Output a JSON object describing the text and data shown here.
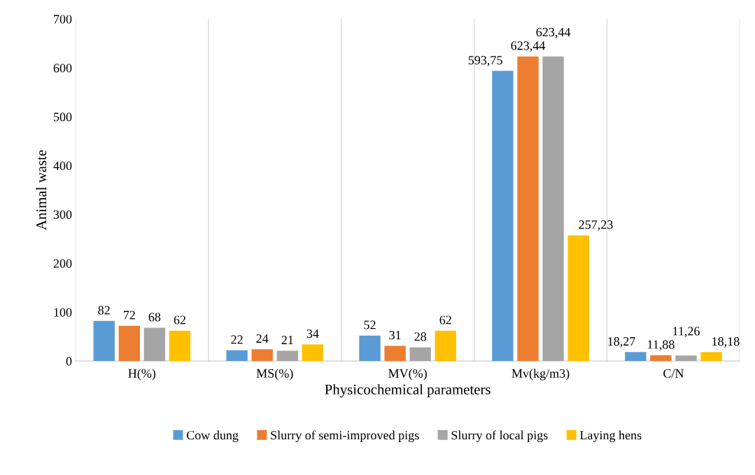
{
  "chart_data": {
    "type": "bar",
    "xlabel": "Physicochemical parameters",
    "ylabel": "Animal waste",
    "categories": [
      "H(%)",
      "MS(%)",
      "MV(%)",
      "Mv(kg/m3)",
      "C/N"
    ],
    "series": [
      {
        "name": "Cow dung",
        "color": "#5b9bd5",
        "values": [
          82,
          22,
          52,
          593.75,
          18.27
        ],
        "value_labels": [
          "82",
          "22",
          "52",
          "593,75",
          "18,27"
        ]
      },
      {
        "name": "Slurry of semi-improved pigs",
        "color": "#ed7d31",
        "values": [
          72,
          24,
          31,
          623.44,
          11.88
        ],
        "value_labels": [
          "72",
          "24",
          "31",
          "623,44",
          "11,88"
        ]
      },
      {
        "name": "Slurry of local pigs",
        "color": "#a5a5a5",
        "values": [
          68,
          21,
          28,
          623.44,
          11.26
        ],
        "value_labels": [
          "68",
          "21",
          "28",
          "623,44",
          "11,26"
        ]
      },
      {
        "name": "Laying hens",
        "color": "#ffc000",
        "values": [
          62,
          34,
          62,
          257.23,
          18.18
        ],
        "value_labels": [
          "62",
          "34",
          "62",
          "257,23",
          "18,18"
        ]
      }
    ],
    "ylim": [
      0,
      700
    ],
    "yticks": [
      0,
      100,
      200,
      300,
      400,
      500,
      600,
      700
    ],
    "grid": "x",
    "legend": "bottom"
  }
}
